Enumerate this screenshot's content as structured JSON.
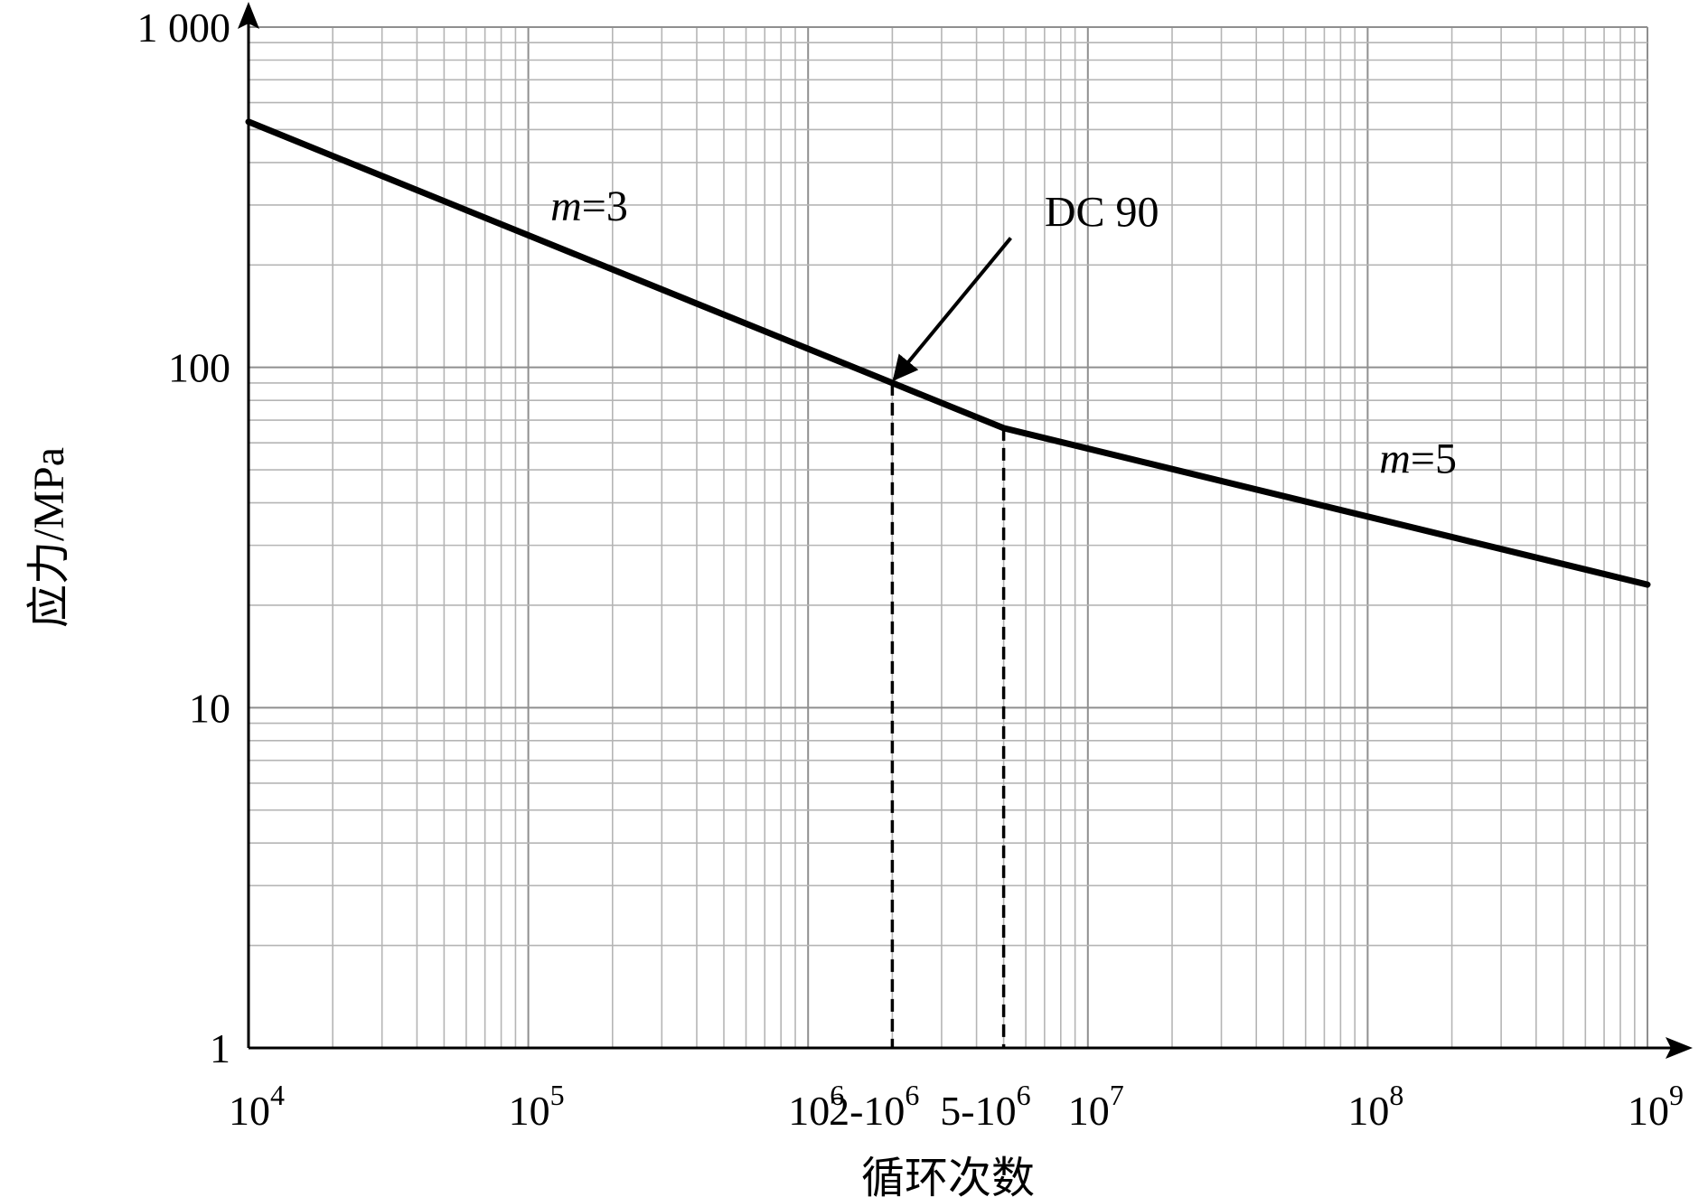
{
  "chart_data": {
    "type": "line",
    "xscale": "log",
    "yscale": "log",
    "xlim": [
      10000,
      1000000000
    ],
    "ylim": [
      1,
      1000
    ],
    "xlabel": "循环次数",
    "ylabel": "应力/MPa",
    "grid": true,
    "x_ticks": [
      {
        "value": 10000,
        "base": "10",
        "exp": "4"
      },
      {
        "value": 100000,
        "base": "10",
        "exp": "5"
      },
      {
        "value": 1000000,
        "base": "10",
        "exp": "6"
      },
      {
        "value": 2000000,
        "base": "2-10",
        "exp": "6"
      },
      {
        "value": 5000000,
        "base": "5-10",
        "exp": "6"
      },
      {
        "value": 10000000,
        "base": "10",
        "exp": "7"
      },
      {
        "value": 100000000,
        "base": "10",
        "exp": "8"
      },
      {
        "value": 1000000000,
        "base": "10",
        "exp": "9"
      }
    ],
    "y_ticks": [
      {
        "value": 1,
        "label": "1"
      },
      {
        "value": 10,
        "label": "10"
      },
      {
        "value": 100,
        "label": "100"
      },
      {
        "value": 1000,
        "label": "1 000"
      }
    ],
    "series": [
      {
        "x": [
          10000,
          2000000,
          5000000,
          1000000000
        ],
        "y": [
          527,
          90,
          66.3,
          23
        ]
      }
    ],
    "reference_lines": [
      {
        "x": 2000000,
        "y_top": 90
      },
      {
        "x": 5000000,
        "y_top": 66.3
      }
    ],
    "annotations": [
      {
        "id": "m3",
        "italic": "m",
        "rest": "=3",
        "x": 120000,
        "y": 270
      },
      {
        "id": "m5",
        "italic": "m",
        "rest": "=5",
        "x": 110000000,
        "y": 49
      },
      {
        "id": "dc90",
        "text": "DC 90",
        "x": 7000000,
        "y": 260,
        "arrow_from": [
          5300000,
          240
        ],
        "arrow_to": [
          2000000,
          90
        ]
      }
    ]
  }
}
